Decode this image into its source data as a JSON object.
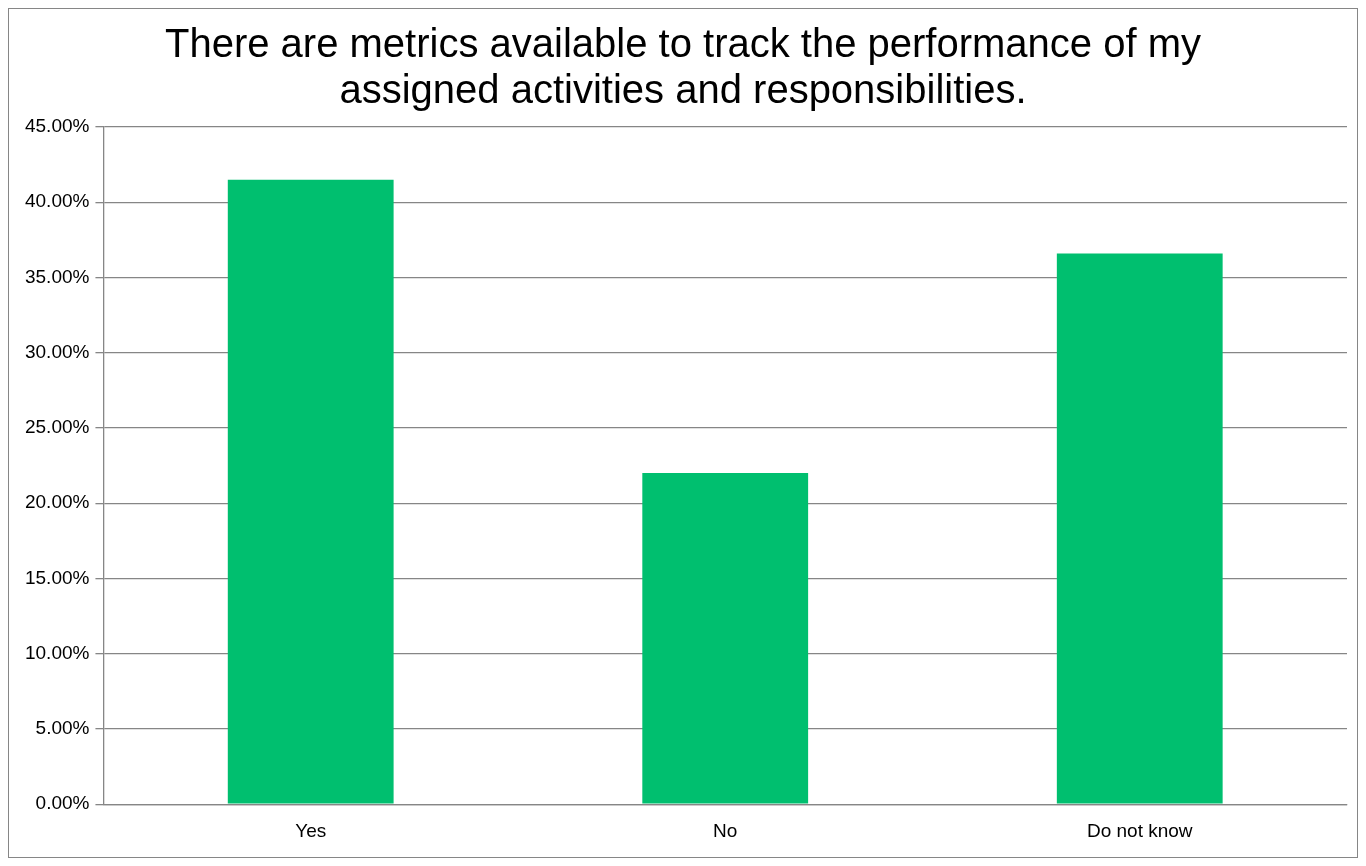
{
  "chart_data": {
    "type": "bar",
    "title": "There are metrics available to track the performance of my assigned activities and responsibilities.",
    "categories": [
      "Yes",
      "No",
      "Do not know"
    ],
    "values": [
      41.5,
      22.0,
      36.6
    ],
    "color": "#00bf6f",
    "ylim": [
      0,
      45
    ],
    "yticks": [
      {
        "value": 0,
        "label": "0.00%"
      },
      {
        "value": 5,
        "label": "5.00%"
      },
      {
        "value": 10,
        "label": "10.00%"
      },
      {
        "value": 15,
        "label": "15.00%"
      },
      {
        "value": 20,
        "label": "20.00%"
      },
      {
        "value": 25,
        "label": "25.00%"
      },
      {
        "value": 30,
        "label": "30.00%"
      },
      {
        "value": 35,
        "label": "35.00%"
      },
      {
        "value": 40,
        "label": "40.00%"
      },
      {
        "value": 45,
        "label": "45.00%"
      }
    ],
    "grid": "y",
    "legend": false
  }
}
